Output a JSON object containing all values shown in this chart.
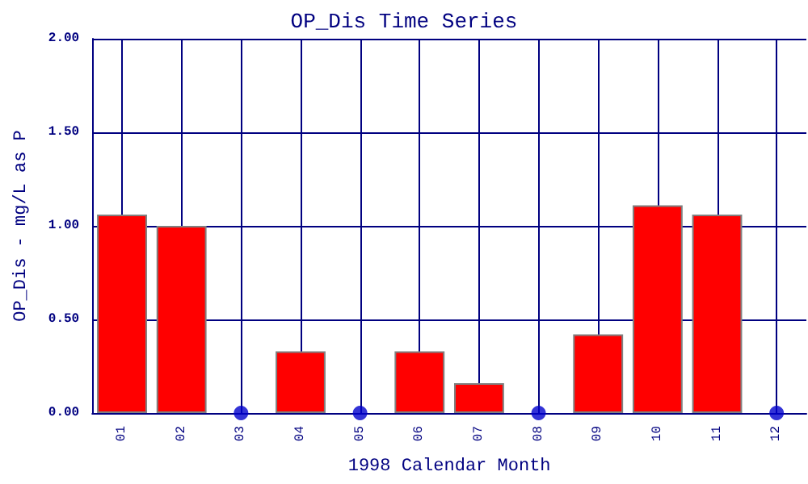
{
  "chart_data": {
    "type": "bar",
    "title": "OP_Dis Time Series",
    "xlabel": "1998 Calendar Month",
    "ylabel": "OP_Dis - mg/L as P",
    "categories": [
      "01",
      "02",
      "03",
      "04",
      "05",
      "06",
      "07",
      "08",
      "09",
      "10",
      "11",
      "12"
    ],
    "series": [
      {
        "color": "#ff0000",
        "values": [
          1.06,
          1.0,
          null,
          0.33,
          null,
          0.33,
          0.16,
          null,
          0.42,
          1.11,
          1.06,
          null
        ]
      },
      {
        "type": "scatter",
        "color": "#0000cc",
        "marker": "circle",
        "x": [
          "03",
          "05",
          "08",
          "12"
        ],
        "values": [
          0,
          0,
          0,
          0
        ]
      }
    ],
    "ylim": [
      0,
      2
    ],
    "yticks": [
      {
        "value": 0,
        "label": "0.00"
      },
      {
        "value": 0.5,
        "label": "0.50"
      },
      {
        "value": 1,
        "label": "1.00"
      },
      {
        "value": 1.5,
        "label": "1.50"
      },
      {
        "value": 2,
        "label": "2.00"
      }
    ],
    "grid": true
  }
}
